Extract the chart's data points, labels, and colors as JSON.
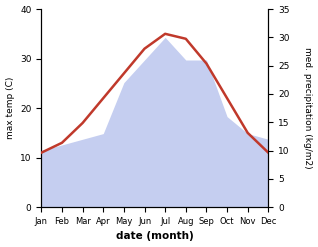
{
  "months": [
    "Jan",
    "Feb",
    "Mar",
    "Apr",
    "May",
    "Jun",
    "Jul",
    "Aug",
    "Sep",
    "Oct",
    "Nov",
    "Dec"
  ],
  "temperature": [
    11,
    13,
    17,
    22,
    27,
    32,
    35,
    34,
    29,
    22,
    15,
    11
  ],
  "precipitation": [
    10,
    11,
    12,
    13,
    22,
    26,
    30,
    26,
    26,
    16,
    13,
    12
  ],
  "temp_color": "#c0392b",
  "precip_fill_color": "#c5cef0",
  "precip_edge_color": "#aab4e8",
  "temp_ylim": [
    0,
    40
  ],
  "precip_ylim": [
    0,
    35
  ],
  "temp_yticks": [
    0,
    10,
    20,
    30,
    40
  ],
  "precip_yticks": [
    0,
    5,
    10,
    15,
    20,
    25,
    30,
    35
  ],
  "xlabel": "date (month)",
  "ylabel_left": "max temp (C)",
  "ylabel_right": "med. precipitation (kg/m2)",
  "figsize": [
    3.18,
    2.47
  ],
  "dpi": 100
}
